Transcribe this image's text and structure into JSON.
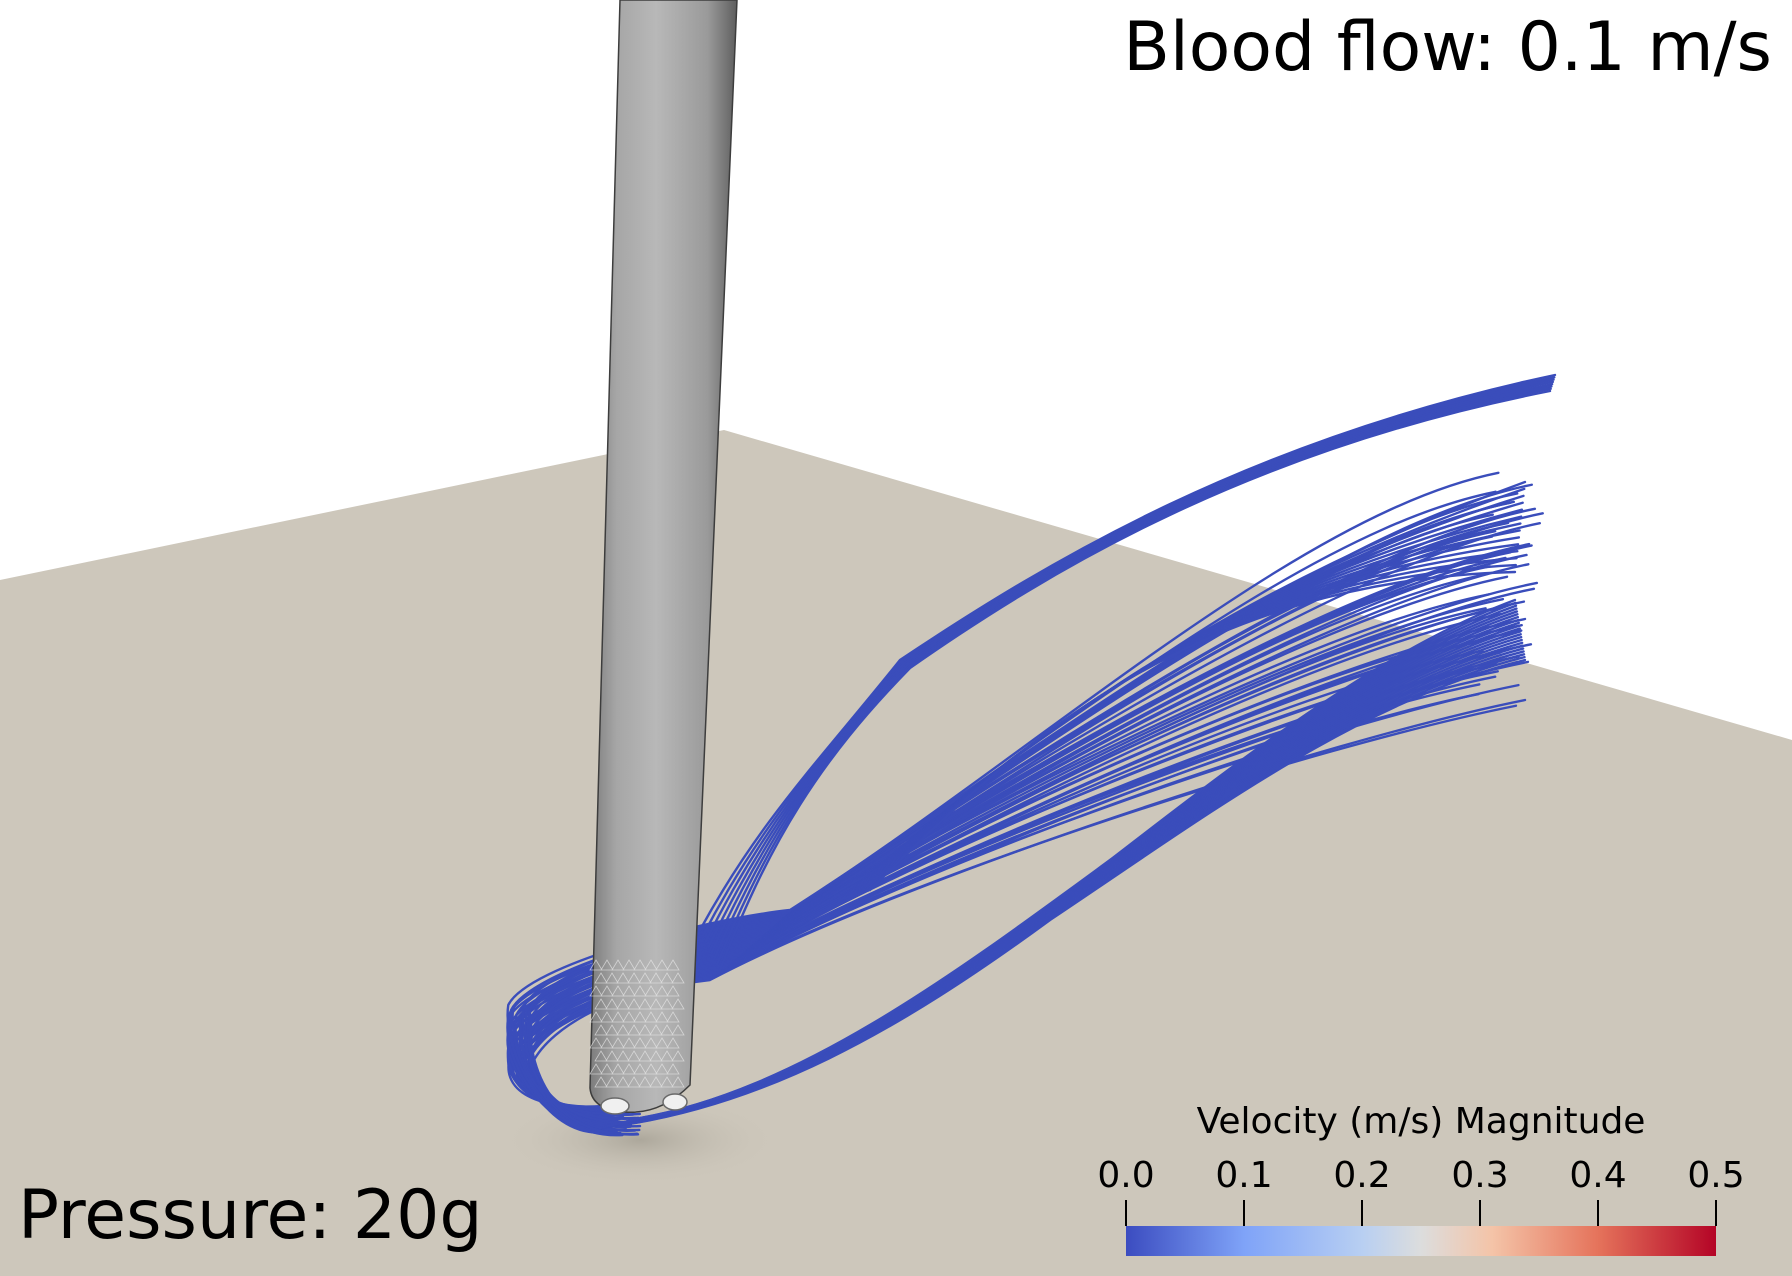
{
  "title": "Blood flow: 0.1 m/s",
  "pressure_label": "Pressure: 20g",
  "legend": {
    "title": "Velocity (m/s) Magnitude",
    "ticks": [
      "0.0",
      "0.1",
      "0.2",
      "0.3",
      "0.4",
      "0.5"
    ],
    "range": [
      0.0,
      0.5
    ],
    "colormap": [
      "#3b4cc0",
      "#dcdddd",
      "#b40426"
    ]
  },
  "colors": {
    "background": "#ffffff",
    "floor": "#cdc7bb",
    "probe": "#8c8c8c",
    "streamline": "#3a4dbb"
  }
}
